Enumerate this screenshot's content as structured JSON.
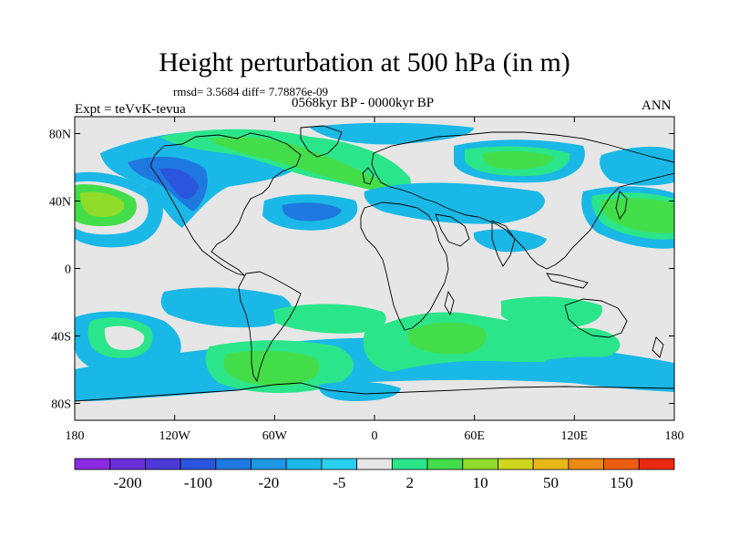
{
  "title": "Height perturbation at 500 hPa (in m)",
  "stats": "rmsd= 3.5684 diff= 7.78876e-09",
  "experiment": "Expt = teVvK-tevua",
  "period": "0568kyr BP - 0000kyr BP",
  "season": "ANN",
  "map_axes": {
    "lon_ticks": [
      "180",
      "120W",
      "60W",
      "0",
      "60E",
      "120E",
      "180"
    ],
    "lat_ticks": [
      "80N",
      "40N",
      "0",
      "40S",
      "80S"
    ]
  },
  "colorbar": {
    "colors": [
      "#8a2be2",
      "#6a2ed8",
      "#4b3ad6",
      "#2a55dc",
      "#1f78e0",
      "#1d97e3",
      "#1ab8e6",
      "#2ad0f0",
      "#e6e6e6",
      "#2be58a",
      "#44dd4a",
      "#8fdc2a",
      "#cfd61e",
      "#e8b81a",
      "#ec8a16",
      "#ee5c12",
      "#ea2a10"
    ],
    "labels": [
      "-200",
      "-100",
      "-20",
      "-5",
      "2",
      "10",
      "50",
      "150"
    ]
  },
  "palette": {
    "neutral": "#e6e6e6",
    "light_blue": "#1ab8e6",
    "blue": "#1f78e0",
    "dark_blue": "#2a55dc",
    "cyan_green": "#2be58a",
    "green": "#44dd4a",
    "yellow_green": "#8fdc2a",
    "coast": "#000000"
  }
}
